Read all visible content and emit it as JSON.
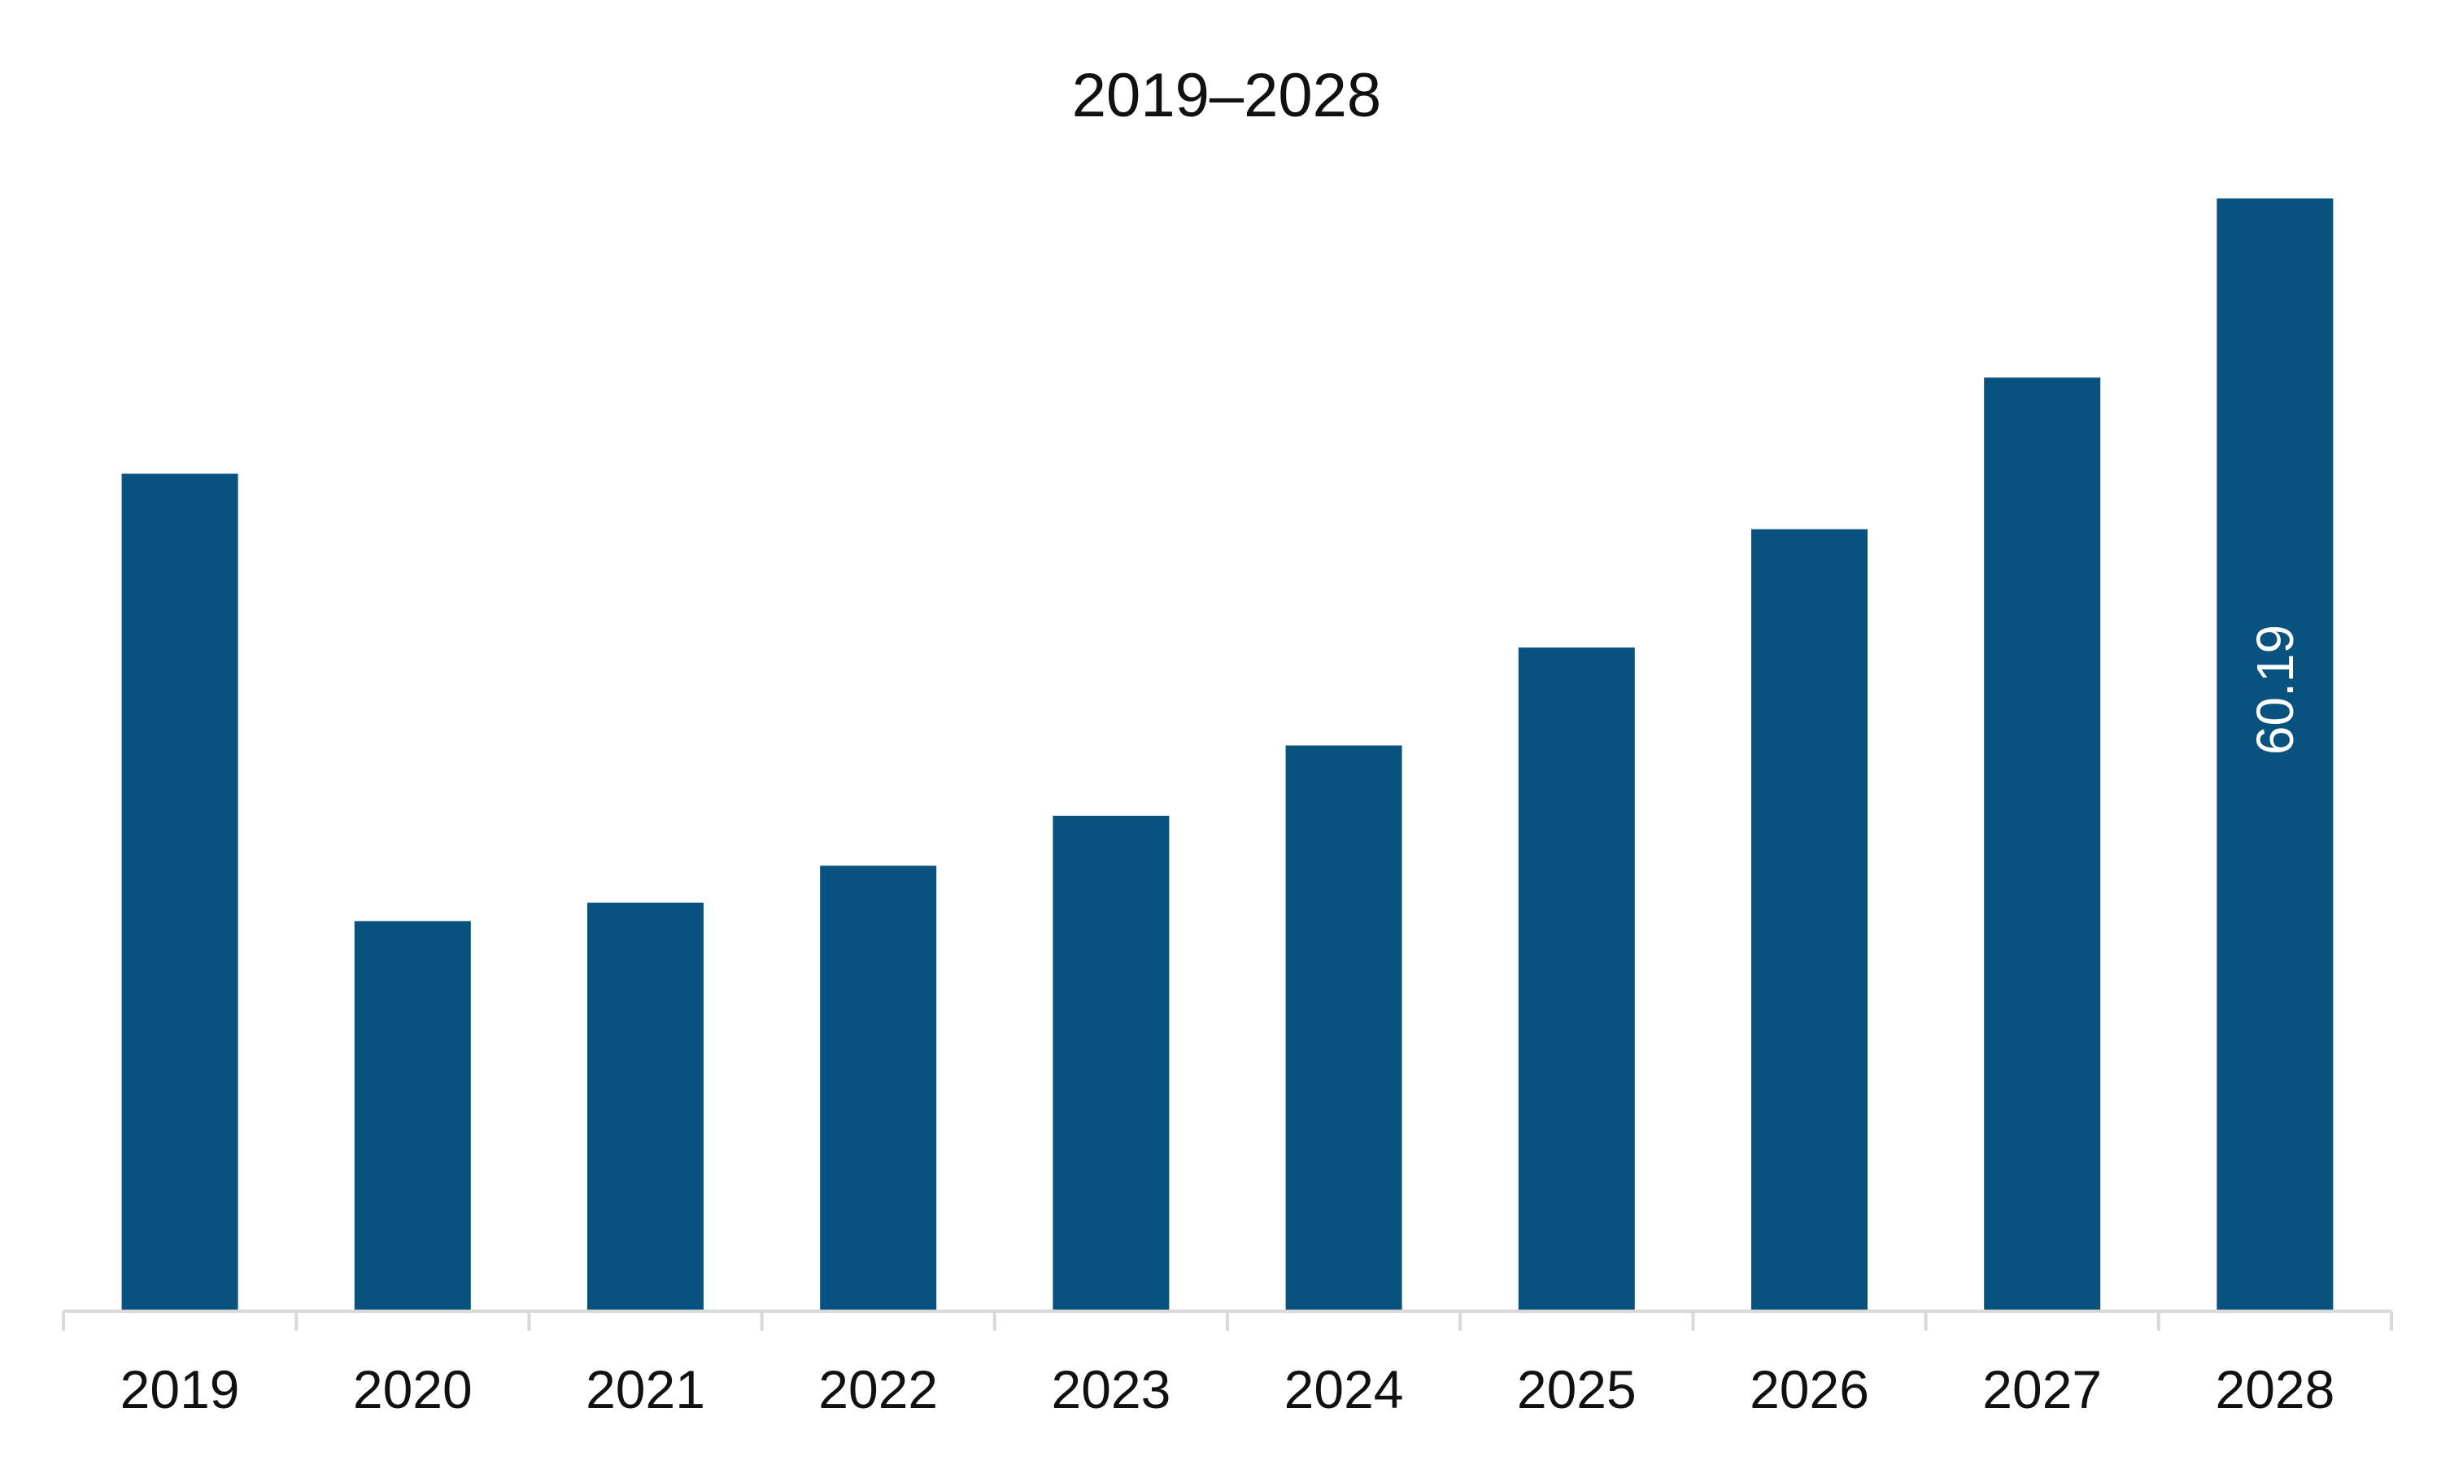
{
  "chart_data": {
    "type": "bar",
    "title": "2019–2028",
    "xlabel": "",
    "ylabel": "",
    "categories": [
      "2019",
      "2020",
      "2021",
      "2022",
      "2023",
      "2024",
      "2025",
      "2026",
      "2027",
      "2028"
    ],
    "values": [
      45.3,
      21.1,
      22.1,
      24.1,
      26.8,
      30.6,
      35.9,
      42.3,
      50.5,
      60.19
    ],
    "data_labels": [
      null,
      null,
      null,
      null,
      null,
      null,
      null,
      null,
      null,
      "60.19"
    ],
    "ylim": [
      0,
      60.19
    ],
    "grid": false,
    "legend": "none",
    "bar_color": "#07527F",
    "axis_color": "#D9D9D9"
  }
}
